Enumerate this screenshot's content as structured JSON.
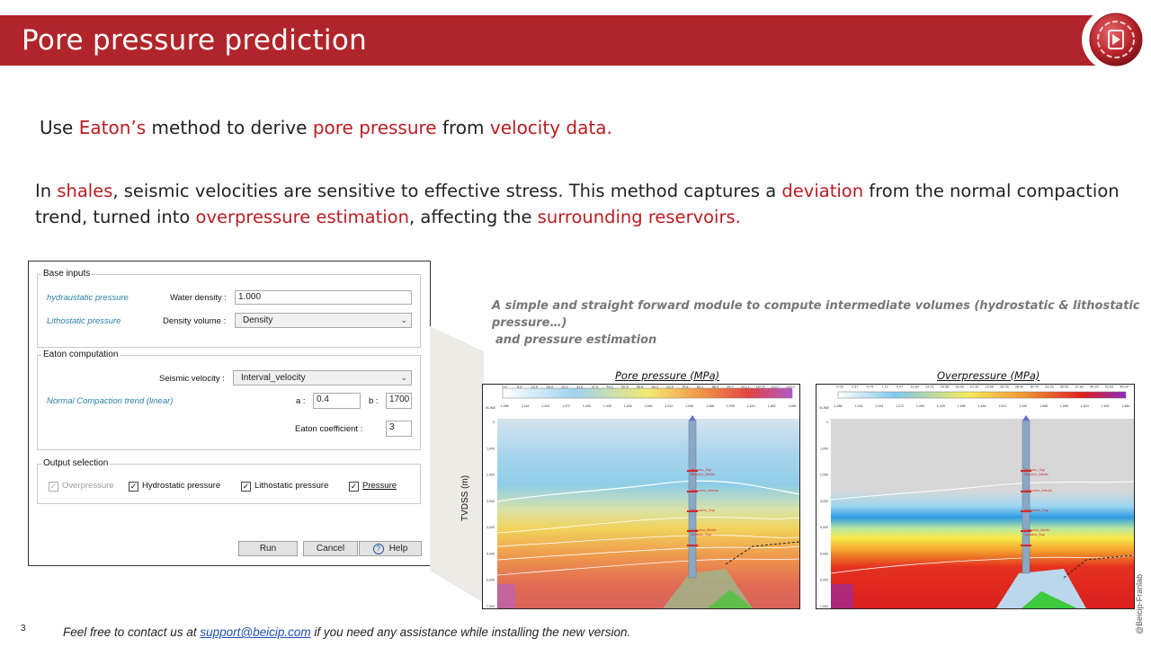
{
  "title": "Pore pressure prediction",
  "intro": {
    "p1": "Use ",
    "h1": "Eaton’s",
    "p2": " method to derive ",
    "h2": "pore pressure",
    "p3": " from ",
    "h3": "velocity data."
  },
  "paragraph": {
    "p1": "In ",
    "h1": "shales",
    "p2": ", seismic velocities are sensitive to effective stress. This method captures a ",
    "h2": "deviation",
    "p3": " from the normal compaction trend, turned into ",
    "h3": "overpressure estimation",
    "p4": ", affecting the ",
    "h4": "surrounding reservoirs."
  },
  "dialog": {
    "base_inputs": {
      "legend": "Base inputs",
      "hydro_label": "hydraustatic pressure",
      "water_density_label": "Water density :",
      "water_density_value": "1.000",
      "litho_label": "Lithostatic pressure",
      "density_volume_label": "Density volume :",
      "density_volume_value": "Density"
    },
    "eaton": {
      "legend": "Eaton computation",
      "seismic_velocity_label": "Seismic velocity :",
      "seismic_velocity_value": "Interval_velocity",
      "nct_label": "Normal Compaction trend (linear)",
      "a_label": "a :",
      "a_value": "0.4",
      "b_label": "b :",
      "b_value": "1700",
      "coef_label": "Eaton coefficient :",
      "coef_value": "3"
    },
    "output": {
      "legend": "Output selection",
      "overpressure": "Overpressure",
      "hydrostatic": "Hydrostatic pressure",
      "lithostatic": "Lithostatic pressure",
      "pressure": "Pressure"
    },
    "buttons": {
      "run": "Run",
      "cancel": "Cancel",
      "help": "Help"
    }
  },
  "caption": {
    "line1": "A simple and straight forward module to compute intermediate volumes (hydrostatic & lithostatic pressure…)",
    "line2": "and pressure estimation"
  },
  "panels": {
    "pore": {
      "title": "Pore pressure (MPa)",
      "ylabel": "TVDSS (m)",
      "scale": [
        "0.0",
        "6.3",
        "12.6",
        "18.9",
        "25.3",
        "31.6",
        "37.9",
        "44.2",
        "50.5",
        "56.8",
        "63.2",
        "69.5",
        "75.8",
        "82.1",
        "88.4",
        "94.7",
        "101.1",
        "107.4",
        "113.7",
        "120.0"
      ]
    },
    "over": {
      "title": "Overpressure (MPa)",
      "scale": [
        "0.00",
        "2.37",
        "4.74",
        "7.11",
        "9.47",
        "11.84",
        "14.21",
        "16.58",
        "18.95",
        "21.32",
        "23.68",
        "26.05",
        "28.42",
        "30.79",
        "33.16",
        "35.53",
        "37.89",
        "40.26",
        "42.63",
        "45.00"
      ]
    },
    "xline_label": "XLINE",
    "xline_ticks": [
      "1,288",
      "1,316",
      "1,344",
      "1,372",
      "1,400",
      "1,428",
      "1,456",
      "1,484",
      "1,512",
      "1,540",
      "1,568",
      "1,596",
      "1,624",
      "1,652",
      "1,680"
    ],
    "depth_ticks": [
      "0",
      "1,000",
      "2,000",
      "3,000",
      "4,000",
      "5,000",
      "6,000",
      "7,000"
    ],
    "well_labels": [
      "Mioceno_Sup",
      "Mioceno_Medio",
      "Oligoceno_Inferior",
      "Paleoceno_Sup",
      "Cretacico_Medio",
      "Jurasico_Sup"
    ]
  },
  "watermark": "@Beicip-Franlab",
  "page_number": "3",
  "footer": {
    "p1": "Feel free to contact us at ",
    "email": "support@beicip.com",
    "p2": " if you need any assistance while installing the new version."
  },
  "colors": {
    "brand_red": "#b0252b",
    "highlight_red": "#b81d22",
    "link_blue": "#1f4fb5"
  }
}
